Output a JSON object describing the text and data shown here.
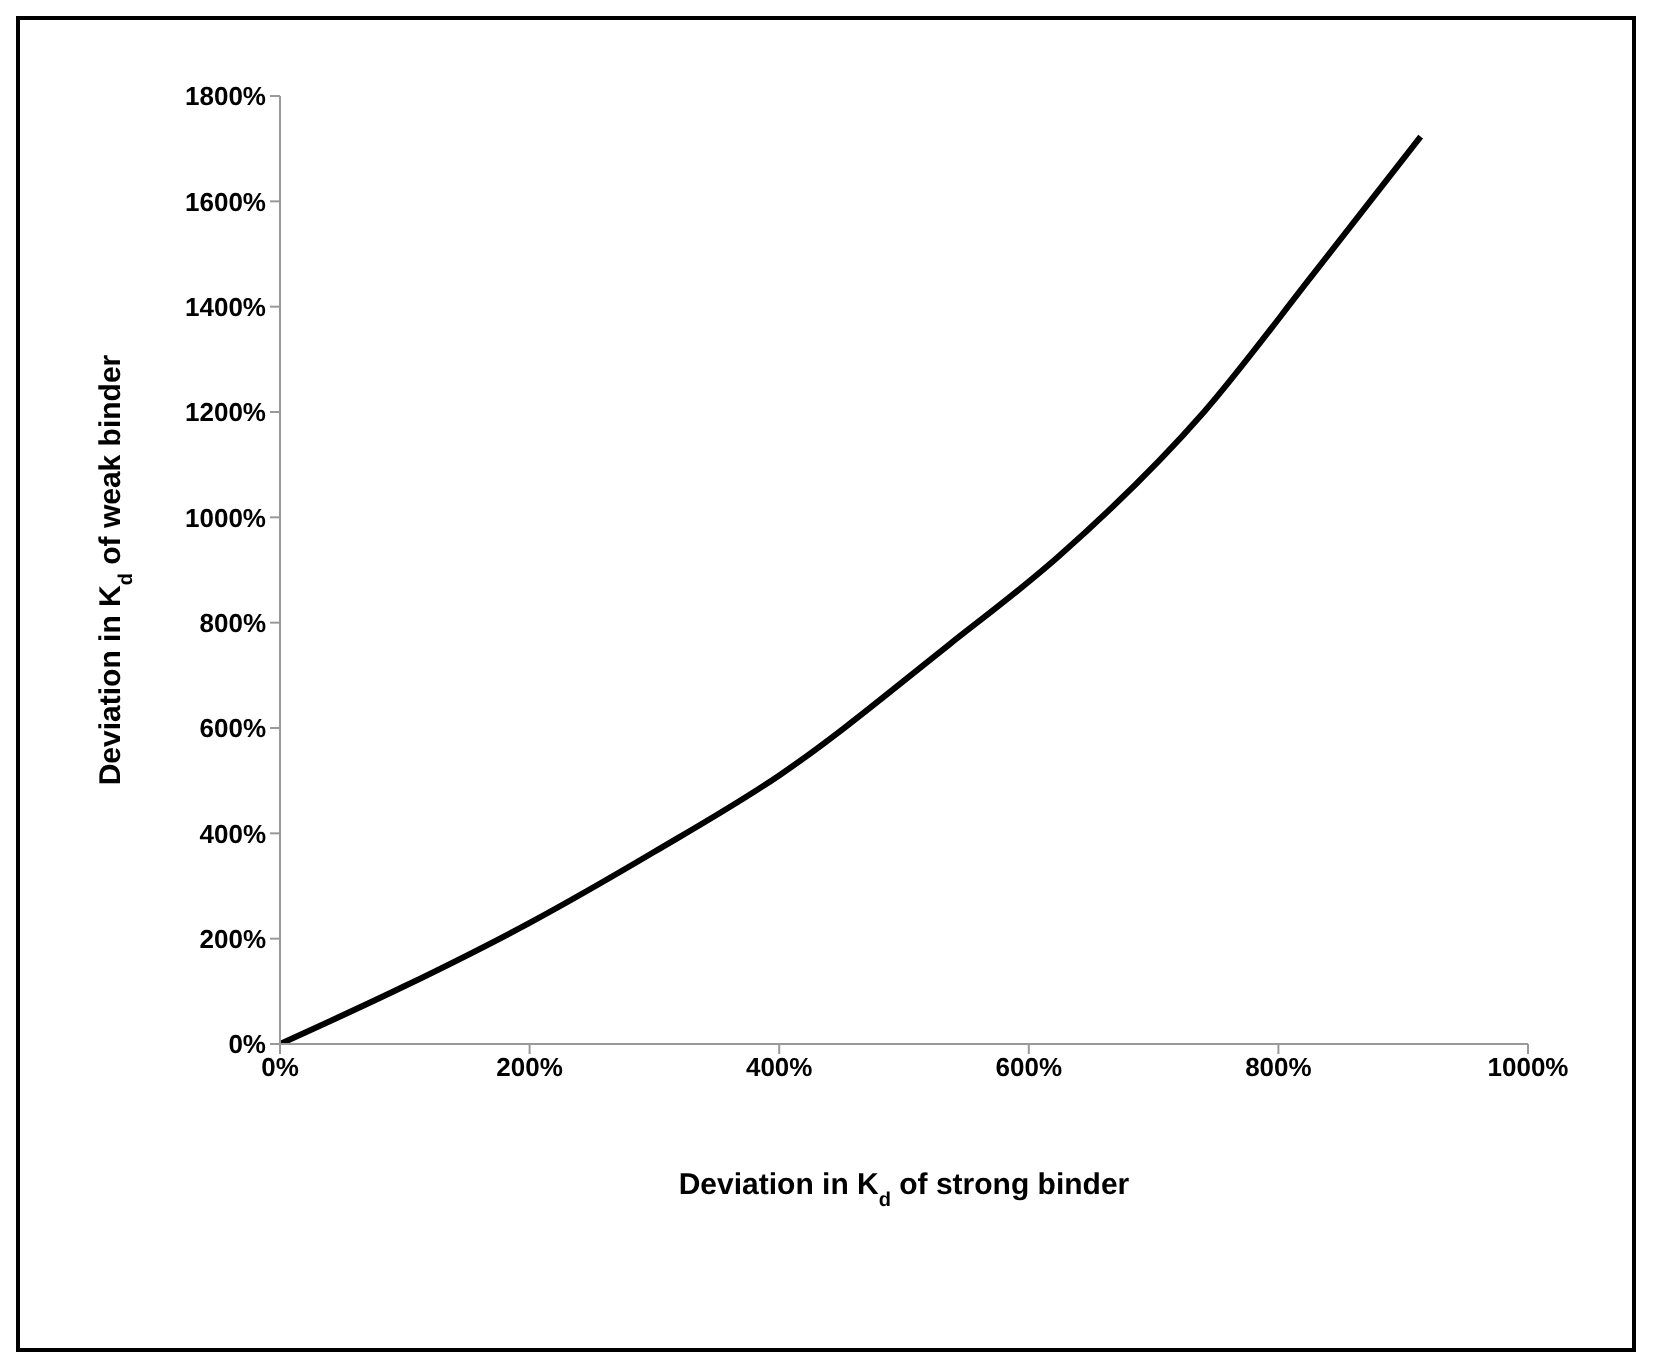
{
  "chart_data": {
    "type": "line",
    "xlabel": "Deviation in K$_{d}$ of strong binder",
    "ylabel": "Deviation in K$_{d}$ of weak binder",
    "x": [
      0,
      100,
      200,
      300,
      400,
      536,
      624,
      740,
      829,
      914
    ],
    "series": [
      {
        "color": "#000000",
        "values": [
          0,
          110,
          230,
          365,
          510,
          758,
          926,
          1199,
          1465,
          1723
        ]
      }
    ],
    "xlim": [
      0,
      1000
    ],
    "xticks": [
      {
        "value": 0,
        "label": "0%"
      },
      {
        "value": 200,
        "label": "200%"
      },
      {
        "value": 400,
        "label": "400%"
      },
      {
        "value": 600,
        "label": "600%"
      },
      {
        "value": 800,
        "label": "800%"
      },
      {
        "value": 1000,
        "label": "1000%"
      }
    ],
    "ylim": [
      0,
      1800
    ],
    "yticks": [
      {
        "value": 0,
        "label": "0%"
      },
      {
        "value": 200,
        "label": "200%"
      },
      {
        "value": 400,
        "label": "400%"
      },
      {
        "value": 600,
        "label": "600%"
      },
      {
        "value": 800,
        "label": "800%"
      },
      {
        "value": 1000,
        "label": "1000%"
      },
      {
        "value": 1200,
        "label": "1200%"
      },
      {
        "value": 1400,
        "label": "1400%"
      },
      {
        "value": 1600,
        "label": "1600%"
      },
      {
        "value": 1800,
        "label": "1800%"
      }
    ],
    "grid": false,
    "legend": false,
    "marker": "none",
    "line_style": "solid"
  }
}
